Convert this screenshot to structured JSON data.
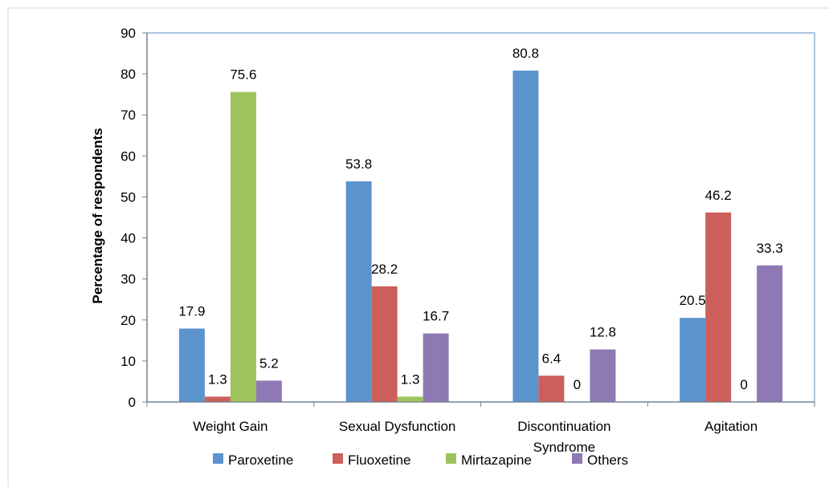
{
  "chart_data": {
    "type": "bar",
    "title": "",
    "xlabel": "",
    "ylabel": "Percentage of respondents",
    "ylim": [
      0,
      90
    ],
    "yticks": [
      0,
      10,
      20,
      30,
      40,
      50,
      60,
      70,
      80,
      90
    ],
    "categories": [
      [
        "Weight Gain"
      ],
      [
        "Sexual Dysfunction"
      ],
      [
        "Discontinuation",
        "Syndrome"
      ],
      [
        "Agitation"
      ]
    ],
    "series": [
      {
        "name": "Paroxetine",
        "color": "#5b93cd",
        "values": [
          17.9,
          53.8,
          80.8,
          20.5
        ]
      },
      {
        "name": "Fluoxetine",
        "color": "#cd5f5a",
        "values": [
          1.3,
          28.2,
          6.4,
          46.2
        ]
      },
      {
        "name": "Mirtazapine",
        "color": "#9fc35c",
        "values": [
          75.6,
          1.3,
          0,
          0
        ]
      },
      {
        "name": "Others",
        "color": "#8f79b5",
        "values": [
          5.2,
          16.7,
          12.8,
          33.3
        ]
      }
    ],
    "legend_position": "bottom",
    "grid": false
  }
}
